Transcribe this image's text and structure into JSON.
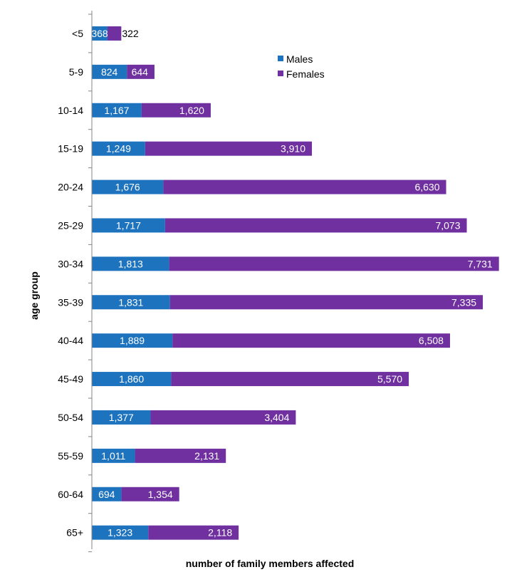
{
  "chart_data": {
    "type": "bar",
    "orientation": "horizontal",
    "stacked": true,
    "title": "",
    "xlabel": "number of family members affected",
    "ylabel": "age group",
    "xlim": [
      0,
      11000
    ],
    "grid": false,
    "legend_position": "top-right",
    "categories": [
      "<5",
      "5-9",
      "10-14",
      "15-19",
      "20-24",
      "25-29",
      "30-34",
      "35-39",
      "40-44",
      "45-49",
      "50-54",
      "55-59",
      "60-64",
      "65+"
    ],
    "series": [
      {
        "name": "Males",
        "color": "#1E73BE",
        "values": [
          368,
          824,
          1167,
          1249,
          1676,
          1717,
          1813,
          1831,
          1889,
          1860,
          1377,
          1011,
          694,
          1323
        ],
        "labels": [
          "368",
          "824",
          "1,167",
          "1,249",
          "1,676",
          "1,717",
          "1,813",
          "1,831",
          "1,889",
          "1,860",
          "1,377",
          "1,011",
          "694",
          "1,323"
        ]
      },
      {
        "name": "Females",
        "color": "#7030A0",
        "values": [
          322,
          644,
          1620,
          3910,
          6630,
          7073,
          7731,
          7335,
          6508,
          5570,
          3404,
          2131,
          1354,
          2118
        ],
        "labels": [
          "322",
          "644",
          "1,620",
          "3,910",
          "6,630",
          "7,073",
          "7,731",
          "7,335",
          "6,508",
          "5,570",
          "3,404",
          "2,131",
          "1,354",
          "2,118"
        ]
      }
    ]
  }
}
